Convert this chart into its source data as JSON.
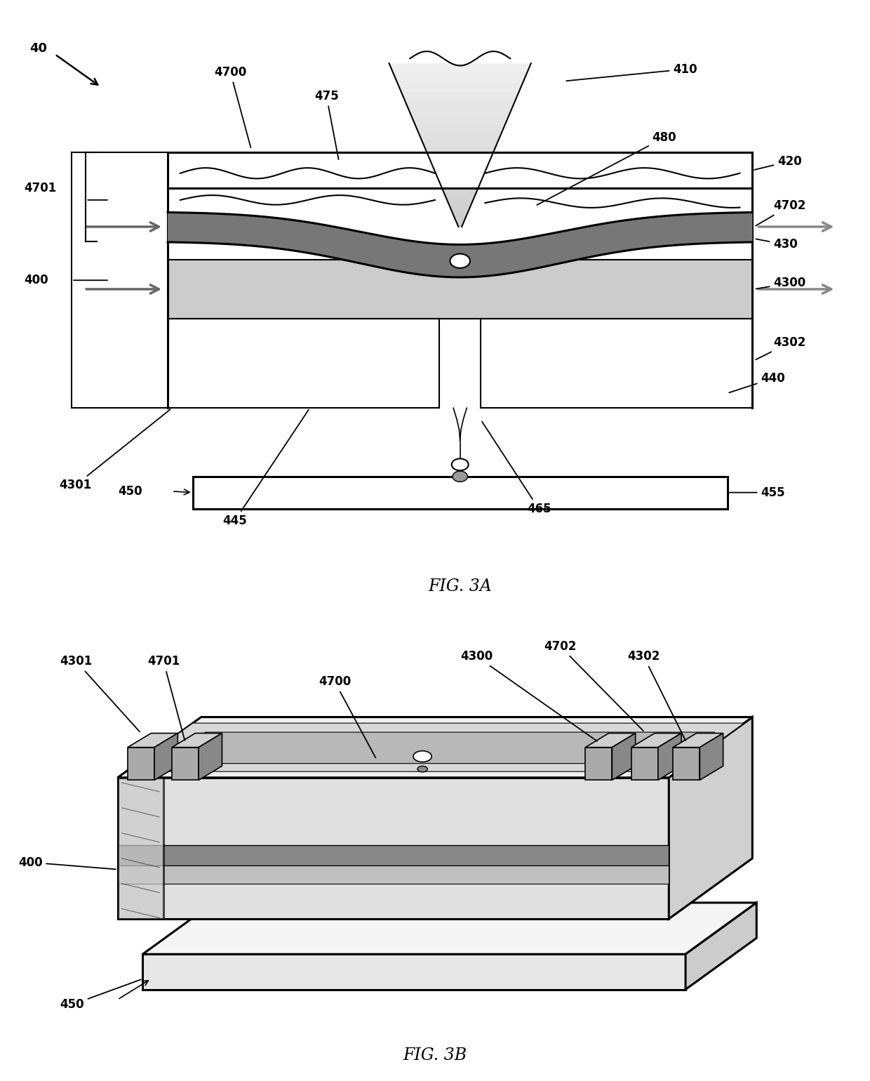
{
  "fig_title_a": "FIG. 3A",
  "fig_title_b": "FIG. 3B",
  "bg_color": "#ffffff",
  "lc": "#000000",
  "gray_dark": "#444444",
  "gray_mid": "#888888",
  "gray_light": "#bbbbbb",
  "gray_lighter": "#d8d8d8",
  "gray_beam": "#aaaaaa",
  "font_size_label": 12,
  "font_size_fig": 17
}
